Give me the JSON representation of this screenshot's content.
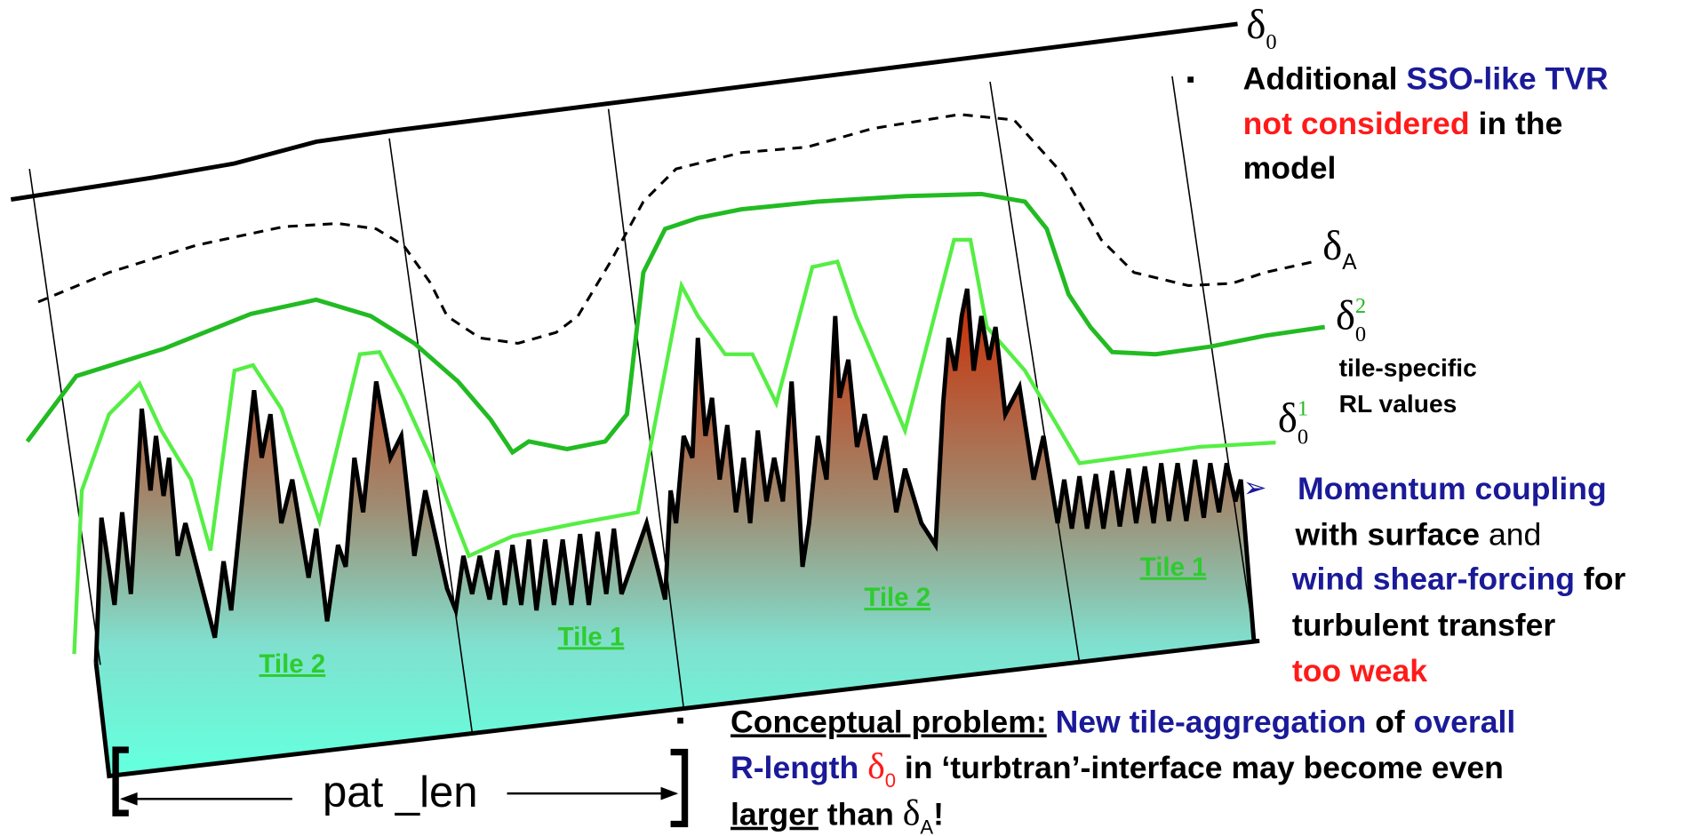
{
  "labels": {
    "delta0": {
      "symbol": "δ",
      "sub": "0"
    },
    "deltaA": {
      "symbol": "δ",
      "sub": "A"
    },
    "delta02": {
      "symbol": "δ",
      "sup": "2",
      "sub": "0"
    },
    "delta01": {
      "symbol": "δ",
      "sup": "1",
      "sub": "0"
    },
    "tile_note": [
      "tile-specific",
      "RL values"
    ]
  },
  "tiles": [
    "Tile 2",
    "Tile 1",
    "Tile 2",
    "Tile 1"
  ],
  "pat_len": "pat _len",
  "notes": [
    {
      "lines": [
        [
          "Additional ",
          "SSO-like TVR"
        ],
        [
          "not considered",
          " in the"
        ],
        [
          "model"
        ]
      ]
    },
    {
      "lines": [
        [
          "Momentum coupling"
        ],
        [
          "with surface",
          " and"
        ],
        [
          "wind shear-forcing",
          " for"
        ],
        [
          "turbulent transfer"
        ],
        [
          "too weak"
        ]
      ]
    },
    {
      "lines": [
        [
          "Conceptual problem:",
          " New tile-aggregation",
          " of",
          " overall"
        ],
        [
          "R-length ",
          "δ",
          "0",
          " in ‘turbtran’-interface may become even"
        ],
        [
          "larger",
          " than ",
          "δ",
          "A",
          "!"
        ]
      ]
    }
  ]
}
